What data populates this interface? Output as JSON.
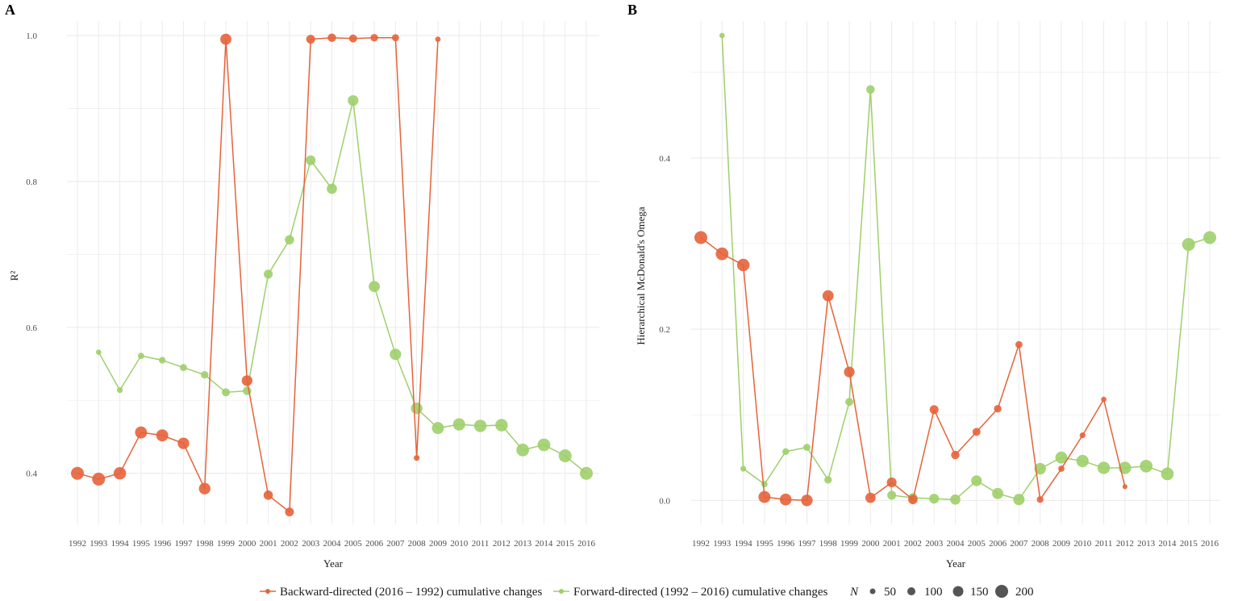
{
  "colors": {
    "backward": "#E5633A",
    "forward": "#9FCF6B",
    "size_legend": "#555555",
    "grid": "#ebebeb"
  },
  "legend": {
    "backward_label": "Backward-directed (2016 – 1992) cumulative changes",
    "forward_label": "Forward-directed (1992 – 2016) cumulative changes",
    "size_title": "N",
    "sizes": [
      "50",
      "100",
      "150",
      "200"
    ]
  },
  "chart_data": [
    {
      "panel": "A",
      "type": "line",
      "title": "",
      "xlabel": "Year",
      "ylabel": "R²",
      "ylim": [
        0.33,
        1.02
      ],
      "yticks": [
        0.4,
        0.6,
        0.8,
        1.0
      ],
      "ytick_labels": [
        "0.4",
        "0.6",
        "0.8",
        "1.0"
      ],
      "categories": [
        "1992",
        "1993",
        "1994",
        "1995",
        "1996",
        "1997",
        "1998",
        "1999",
        "2000",
        "2001",
        "2002",
        "2003",
        "2004",
        "2005",
        "2006",
        "2007",
        "2008",
        "2009",
        "2010",
        "2011",
        "2012",
        "2013",
        "2014",
        "2015",
        "2016"
      ],
      "grid": true,
      "series": [
        {
          "name": "Backward-directed (2016 – 1992) cumulative changes",
          "color_key": "backward",
          "x": [
            "1992",
            "1993",
            "1994",
            "1995",
            "1996",
            "1997",
            "1998",
            "1999",
            "2000",
            "2001",
            "2002",
            "2003",
            "2004",
            "2005",
            "2006",
            "2007",
            "2008",
            "2009"
          ],
          "values": [
            0.4,
            0.392,
            0.4,
            0.456,
            0.452,
            0.441,
            0.379,
            0.995,
            0.527,
            0.37,
            0.347,
            0.995,
            0.997,
            0.996,
            0.997,
            0.997,
            0.421,
            0.995
          ],
          "n": [
            200,
            200,
            190,
            180,
            180,
            170,
            170,
            160,
            150,
            120,
            110,
            110,
            100,
            90,
            80,
            70,
            40,
            30
          ]
        },
        {
          "name": "Forward-directed (1992 – 2016) cumulative changes",
          "color_key": "forward",
          "x": [
            "1993",
            "1994",
            "1995",
            "1996",
            "1997",
            "1998",
            "1999",
            "2000",
            "2001",
            "2002",
            "2003",
            "2004",
            "2005",
            "2006",
            "2007",
            "2008",
            "2009",
            "2010",
            "2011",
            "2012",
            "2013",
            "2014",
            "2015",
            "2016"
          ],
          "values": [
            0.566,
            0.514,
            0.561,
            0.555,
            0.545,
            0.535,
            0.511,
            0.513,
            0.673,
            0.72,
            0.829,
            0.79,
            0.911,
            0.656,
            0.563,
            0.489,
            0.462,
            0.467,
            0.465,
            0.466,
            0.432,
            0.439,
            0.424,
            0.4
          ],
          "n": [
            30,
            40,
            50,
            60,
            70,
            80,
            90,
            100,
            110,
            120,
            130,
            140,
            150,
            160,
            165,
            170,
            180,
            185,
            190,
            190,
            195,
            195,
            200,
            200
          ]
        }
      ]
    },
    {
      "panel": "B",
      "type": "line",
      "title": "",
      "xlabel": "Year",
      "ylabel": "Hierarchical McDonald's Omega",
      "ylim": [
        -0.028,
        0.56
      ],
      "yticks": [
        0.0,
        0.2,
        0.4
      ],
      "ytick_labels": [
        "0.0",
        "0.2",
        "0.4"
      ],
      "categories": [
        "1992",
        "1993",
        "1994",
        "1995",
        "1996",
        "1997",
        "1998",
        "1999",
        "2000",
        "2001",
        "2002",
        "2003",
        "2004",
        "2005",
        "2006",
        "2007",
        "2008",
        "2009",
        "2010",
        "2011",
        "2012",
        "2013",
        "2014",
        "2015",
        "2016"
      ],
      "grid": true,
      "series": [
        {
          "name": "Backward-directed (2016 – 1992) cumulative changes",
          "color_key": "backward",
          "x": [
            "1992",
            "1993",
            "1994",
            "1995",
            "1996",
            "1997",
            "1998",
            "1999",
            "2000",
            "2001",
            "2002",
            "2003",
            "2004",
            "2005",
            "2006",
            "2007",
            "2008",
            "2009",
            "2010",
            "2011",
            "2012"
          ],
          "values": [
            0.307,
            0.288,
            0.275,
            0.004,
            0.001,
            0.0,
            0.239,
            0.15,
            0.003,
            0.021,
            0.001,
            0.106,
            0.053,
            0.08,
            0.107,
            0.182,
            0.001,
            0.037,
            0.076,
            0.118,
            0.016
          ],
          "n": [
            200,
            195,
            190,
            180,
            175,
            170,
            160,
            150,
            140,
            130,
            120,
            110,
            100,
            90,
            80,
            70,
            60,
            50,
            40,
            30,
            20
          ]
        },
        {
          "name": "Forward-directed (1992 – 2016) cumulative changes",
          "color_key": "forward",
          "x": [
            "1993",
            "1994",
            "1995",
            "1996",
            "1997",
            "1998",
            "1999",
            "2000",
            "2001",
            "2002",
            "2003",
            "2004",
            "2005",
            "2006",
            "2007",
            "2008",
            "2009",
            "2010",
            "2011",
            "2012",
            "2013",
            "2014",
            "2015",
            "2016"
          ],
          "values": [
            0.543,
            0.037,
            0.019,
            0.057,
            0.062,
            0.024,
            0.115,
            0.48,
            0.006,
            0.003,
            0.002,
            0.001,
            0.023,
            0.008,
            0.001,
            0.037,
            0.05,
            0.046,
            0.038,
            0.038,
            0.04,
            0.031,
            0.299,
            0.307
          ],
          "n": [
            30,
            40,
            50,
            60,
            70,
            80,
            90,
            100,
            110,
            120,
            130,
            140,
            150,
            160,
            165,
            170,
            180,
            185,
            190,
            190,
            195,
            195,
            200,
            200
          ]
        }
      ]
    }
  ]
}
